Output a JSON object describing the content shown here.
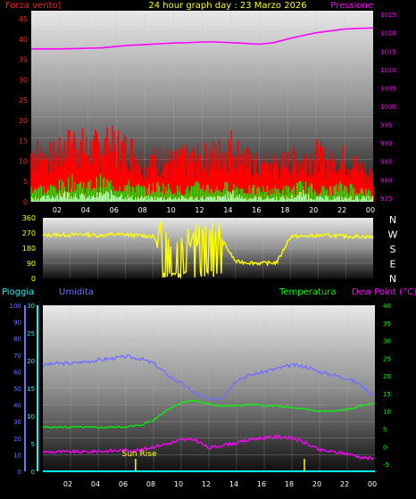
{
  "colors": {
    "wind_label": "#ff2020",
    "pressure": "#ff00ff",
    "title": "#ffff00",
    "wind_gust": "#ff0000",
    "wind_avg": "#00ff00",
    "wind_low": "#ffffff",
    "direction": "#ffff00",
    "rain": "#00ffff",
    "humidity": "#7070ff",
    "temperature": "#00ff00",
    "dewpoint": "#ff00ff",
    "sunrise": "#ffff00",
    "axis_tick": "#ffffff"
  },
  "header": {
    "left_label": "Forza vento)",
    "title": "24 hour graph day : 23 Marzo 2026",
    "right_label": "Pressione"
  },
  "lower_header": {
    "rain": "Pioggia",
    "humidity": "Umidita",
    "temperature": "Temperatura",
    "dewpoint": "Dew Point (°C)"
  },
  "sunrise_label": "Sun Rise",
  "x_ticks": [
    "02",
    "04",
    "06",
    "08",
    "10",
    "12",
    "14",
    "16",
    "18",
    "20",
    "22",
    "00"
  ],
  "compass": [
    "N",
    "W",
    "S",
    "E",
    "N"
  ],
  "chart_data": [
    {
      "type": "line",
      "name": "wind-pressure",
      "wind_axis_ticks": [
        "0",
        "5",
        "10",
        "15",
        "20",
        "25",
        "30",
        "35",
        "40",
        "45"
      ],
      "pressure_axis_ticks": [
        "975",
        "980",
        "985",
        "990",
        "995",
        "1000",
        "1005",
        "1010",
        "1015",
        "1020",
        "1025"
      ],
      "wind_ylim": [
        0,
        47
      ],
      "pressure_ylim": [
        974,
        1026
      ],
      "x": [
        0,
        1,
        2,
        3,
        4,
        5,
        6,
        7,
        8,
        9,
        10,
        11,
        12,
        13,
        14,
        15,
        16,
        17,
        18,
        19,
        20,
        21,
        22,
        23,
        24
      ],
      "series": [
        {
          "key": "pressure",
          "values": [
            1015.6,
            1015.6,
            1015.6,
            1015.7,
            1015.8,
            1015.9,
            1016.3,
            1016.6,
            1016.8,
            1017.0,
            1017.2,
            1017.3,
            1017.5,
            1017.5,
            1017.3,
            1017.1,
            1016.9,
            1017.3,
            1018.3,
            1019.2,
            1020.0,
            1020.5,
            1021.0,
            1021.2,
            1021.3
          ]
        },
        {
          "key": "wind_gust",
          "values": [
            12,
            10,
            11,
            14,
            12,
            13,
            13,
            12,
            9,
            10,
            9,
            10,
            10,
            11,
            13,
            10,
            8,
            9,
            9,
            10,
            11,
            9,
            10,
            8,
            6
          ]
        },
        {
          "key": "wind_avg",
          "values": [
            4,
            3,
            4,
            5,
            4,
            5,
            4,
            4,
            3,
            4,
            3,
            3,
            4,
            3,
            4,
            3,
            3,
            3,
            3,
            4,
            3,
            3,
            4,
            3,
            2
          ]
        },
        {
          "key": "wind_low",
          "values": [
            1,
            1,
            2,
            2,
            1,
            2,
            2,
            1,
            1,
            1,
            1,
            1,
            1,
            1,
            2,
            1,
            1,
            1,
            1,
            2,
            1,
            1,
            1,
            1,
            1
          ]
        }
      ]
    },
    {
      "type": "line",
      "name": "wind-direction",
      "axis_ticks": [
        "360",
        "270",
        "180",
        "90",
        "0"
      ],
      "ylim": [
        0,
        360
      ],
      "x": [
        0,
        1,
        2,
        3,
        4,
        5,
        6,
        7,
        8,
        9,
        10,
        11,
        12,
        13,
        14,
        15,
        16,
        17,
        18,
        19,
        20,
        21,
        22,
        23,
        24
      ],
      "series": [
        {
          "key": "direction",
          "values": [
            255,
            260,
            258,
            262,
            255,
            262,
            260,
            255,
            250,
            150,
            210,
            170,
            245,
            230,
            100,
            95,
            90,
            95,
            250,
            250,
            255,
            255,
            250,
            250,
            245
          ]
        }
      ]
    },
    {
      "type": "line",
      "name": "temp-humidity",
      "rain_axis_ticks": [
        "0",
        "5",
        "10",
        "15",
        "20",
        "25",
        "30"
      ],
      "humidity_axis_ticks": [
        "0",
        "10",
        "20",
        "30",
        "40",
        "50",
        "60",
        "70",
        "80",
        "90",
        "100"
      ],
      "temp_axis_ticks": [
        "-5",
        "0",
        "5",
        "10",
        "15",
        "20",
        "25",
        "30",
        "35",
        "40"
      ],
      "rain_ylim": [
        0,
        30
      ],
      "humidity_ylim": [
        0,
        100
      ],
      "temp_ylim": [
        -7,
        40
      ],
      "x": [
        0,
        1,
        2,
        3,
        4,
        5,
        6,
        7,
        8,
        9,
        10,
        11,
        12,
        13,
        14,
        15,
        16,
        17,
        18,
        19,
        20,
        21,
        22,
        23,
        24
      ],
      "series": [
        {
          "key": "humidity",
          "values": [
            64,
            65,
            65,
            66,
            67,
            68,
            69,
            68,
            65,
            58,
            53,
            47,
            43,
            45,
            55,
            58,
            60,
            62,
            64,
            63,
            60,
            58,
            56,
            52,
            45
          ]
        },
        {
          "key": "temperature",
          "values": [
            5.5,
            5.5,
            5.5,
            5.5,
            5.4,
            5.5,
            5.6,
            6.0,
            7.5,
            10.5,
            12.5,
            13.0,
            12.0,
            11.5,
            11.5,
            12.0,
            11.5,
            11.5,
            11.0,
            10.5,
            10.0,
            10.0,
            10.5,
            11.5,
            12.5
          ]
        },
        {
          "key": "dewpoint",
          "values": [
            -1.5,
            -1.5,
            -1.5,
            -1.5,
            -1.3,
            -1.2,
            -1.0,
            -1.0,
            0.0,
            0.8,
            1.8,
            2.0,
            -0.5,
            0.5,
            1.0,
            2.0,
            2.5,
            2.8,
            2.5,
            1.0,
            -1.0,
            -1.5,
            -2.0,
            -3.0,
            -3.5
          ]
        },
        {
          "key": "rain",
          "values": [
            0,
            0,
            0,
            0,
            0,
            0,
            0,
            0,
            0,
            0,
            0,
            0,
            0,
            0,
            0,
            0,
            0,
            0,
            0,
            0,
            0,
            0,
            0,
            0,
            0
          ]
        }
      ],
      "sunrise_hour": 6.7,
      "sunset_hour": 18.9
    }
  ]
}
